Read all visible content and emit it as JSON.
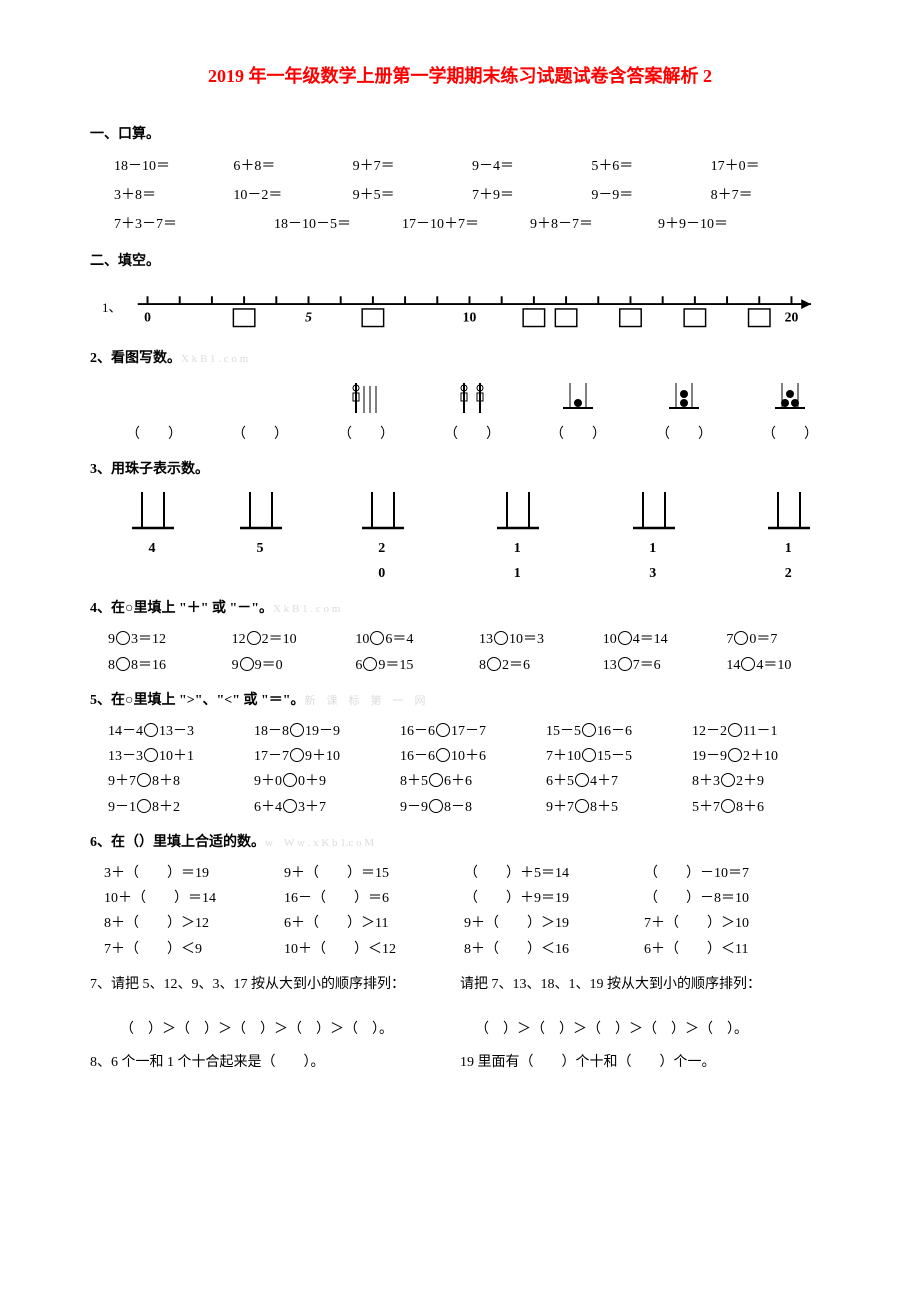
{
  "title": "2019 年一年级数学上册第一学期期末练习试题试卷含答案解析 2",
  "sec1": {
    "head": "一、口算。",
    "rows5": [
      [
        "18－10＝",
        "6＋8＝",
        "9＋7＝",
        "9－4＝",
        "5＋6＝",
        "17＋0＝"
      ],
      [
        "3＋8＝",
        "10－2＝",
        "9＋5＝",
        "7＋9＝",
        "9－9＝",
        "8＋7＝"
      ]
    ],
    "rows6": [
      "7＋3－7＝",
      "18－10－5＝",
      "17－10＋7＝",
      "9＋8－7＝",
      "9＋9－10＝"
    ]
  },
  "sec2": {
    "head": "二、填空。",
    "q1_index": "1、",
    "numline": {
      "labels": {
        "0": "0",
        "5": "5",
        "10": "10",
        "20": "20"
      },
      "boxes": [
        3,
        7,
        12,
        13,
        15,
        17,
        19
      ]
    },
    "q2_head": "2、看图写数。",
    "q2_gray": "X k  B  1 . c o m",
    "q2_blank": "（　　）",
    "q3_head": "3、用珠子表示数。",
    "q3_items": [
      {
        "label": "4"
      },
      {
        "label": "5"
      },
      {
        "label": "2　0"
      },
      {
        "label": "1　1"
      },
      {
        "label": "1　3"
      },
      {
        "label": "1　2"
      }
    ],
    "q4_head": "4、在○里填上 \"＋\" 或 \"－\"。",
    "q4_gray": "X k  B  1 . c o m",
    "q4_rows": [
      [
        "9○3＝12",
        "12○2＝10",
        "10○6＝4",
        "13○10＝3",
        "10○4＝14",
        "7○0＝7"
      ],
      [
        "8○8＝16",
        "9○9＝0",
        "6○9＝15",
        "8○2＝6",
        "13○7＝6",
        "14○4＝10"
      ]
    ],
    "q5_head": "5、在○里填上 \">\"、\"<\" 或 \"＝\"。",
    "q5_gray": "新　课　标　第　一　网",
    "q5_rows": [
      [
        "14－4○13－3",
        "18－8○19－9",
        "16－6○17－7",
        "15－5○16－6",
        "12－2○11－1"
      ],
      [
        "13－3○10＋1",
        "17－7○9＋10",
        "16－6○10＋6",
        "7＋10○15－5",
        "19－9○2＋10"
      ],
      [
        "9＋7○8＋8",
        "9＋0○0＋9",
        "8＋5○6＋6",
        "6＋5○4＋7",
        "8＋3○2＋9"
      ],
      [
        "9－1○8＋2",
        "6＋4○3＋7",
        "9－9○8－8",
        "9＋7○8＋5",
        "5＋7○8＋6"
      ]
    ],
    "q6_head": "6、在（）里填上合适的数。",
    "q6_gray": "w　W w . x K b 1.c o M",
    "q6_rows": [
      [
        "3＋（　　）＝19",
        "9＋（　　）＝15",
        "（　　）＋5＝14",
        "（　　）－10＝7"
      ],
      [
        "10＋（　　）＝14",
        "16－（　　）＝6",
        "（　　）＋9＝19",
        "（　　）－8＝10"
      ],
      [
        "8＋（　　）＞12",
        "6＋（　　）＞11",
        "9＋（　　）＞19",
        "7＋（　　）＞10"
      ],
      [
        "7＋（　　）＜9",
        "10＋（　　）＜12",
        "8＋（　　）＜16",
        "6＋（　　）＜11"
      ]
    ],
    "q7_left": "7、请把 5、12、9、3、17 按从大到小的顺序排列：",
    "q7_right": "请把 7、13、18、1、19 按从大到小的顺序排列：",
    "q7_chain": "（　）＞（　）＞（　）＞（　）＞（　）。",
    "q8_left": "8、6 个一和 1 个十合起来是（　　）。",
    "q8_right": "19 里面有（　　）个十和（　　）个一。"
  },
  "colors": {
    "title": "#ff0000",
    "text": "#000000",
    "gray": "#dcdcdc",
    "bg": "#ffffff"
  }
}
